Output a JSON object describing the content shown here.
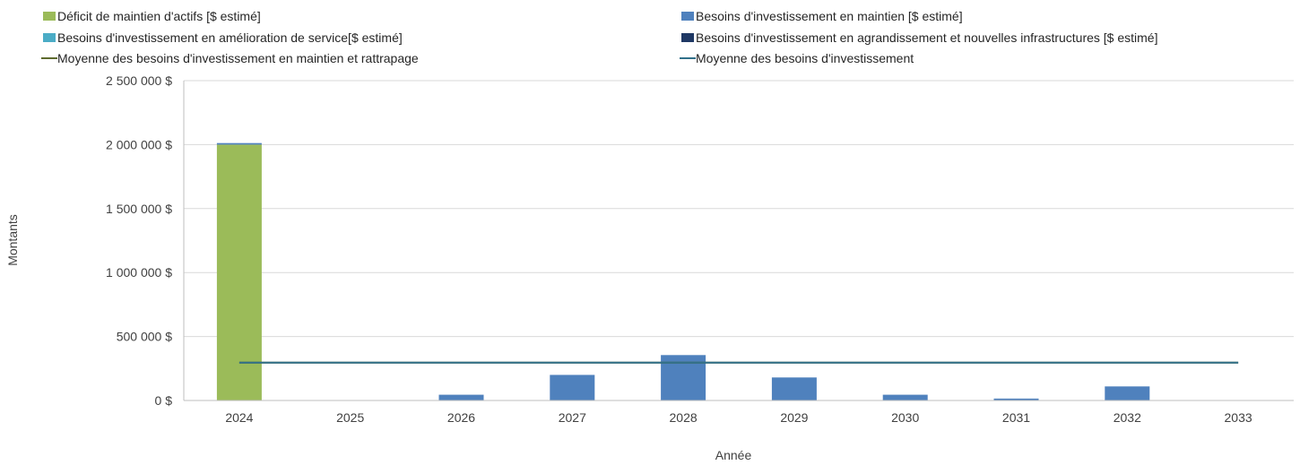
{
  "chart_data": {
    "type": "bar",
    "stacked": true,
    "title": "",
    "xlabel": "Année",
    "ylabel": "Montants",
    "ylim": [
      0,
      2500000
    ],
    "yticks": [
      0,
      500000,
      1000000,
      1500000,
      2000000,
      2500000
    ],
    "ytick_labels": [
      "0 $",
      "500 000 $",
      "1 000 000 $",
      "1 500 000 $",
      "2 000 000 $",
      "2 500 000 $"
    ],
    "categories": [
      "2024",
      "2025",
      "2026",
      "2027",
      "2028",
      "2029",
      "2030",
      "2031",
      "2032",
      "2033"
    ],
    "grid": "horizontal",
    "legend_position": "top",
    "series": [
      {
        "name": "Déficit de maintien d'actifs [$ estimé]",
        "kind": "bar",
        "color": "#9bbb59",
        "values": [
          2000000,
          0,
          0,
          0,
          0,
          0,
          0,
          0,
          0,
          0
        ]
      },
      {
        "name": "Besoins d'investissement en maintien [$ estimé]",
        "kind": "bar",
        "color": "#4f81bd",
        "values": [
          12000,
          0,
          45000,
          200000,
          355000,
          180000,
          45000,
          15000,
          110000,
          0
        ]
      },
      {
        "name": "Besoins d'investissement en amélioration de service[$ estimé]",
        "kind": "bar",
        "color": "#4bacc6",
        "values": [
          0,
          0,
          0,
          0,
          0,
          0,
          0,
          0,
          0,
          0
        ]
      },
      {
        "name": "Besoins d'investissement en agrandissement et nouvelles infrastructures [$ estimé]",
        "kind": "bar",
        "color": "#1f3864",
        "values": [
          0,
          0,
          0,
          0,
          0,
          0,
          0,
          0,
          0,
          0
        ]
      },
      {
        "name": "Moyenne des besoins d'investissement en maintien et rattrapage",
        "kind": "line",
        "color": "#5e6b2e",
        "values": [
          296000,
          296000,
          296000,
          296000,
          296000,
          296000,
          296000,
          296000,
          296000,
          296000
        ]
      },
      {
        "name": "Moyenne des besoins d'investissement",
        "kind": "line",
        "color": "#31708a",
        "values": [
          296000,
          296000,
          296000,
          296000,
          296000,
          296000,
          296000,
          296000,
          296000,
          296000
        ]
      }
    ]
  }
}
